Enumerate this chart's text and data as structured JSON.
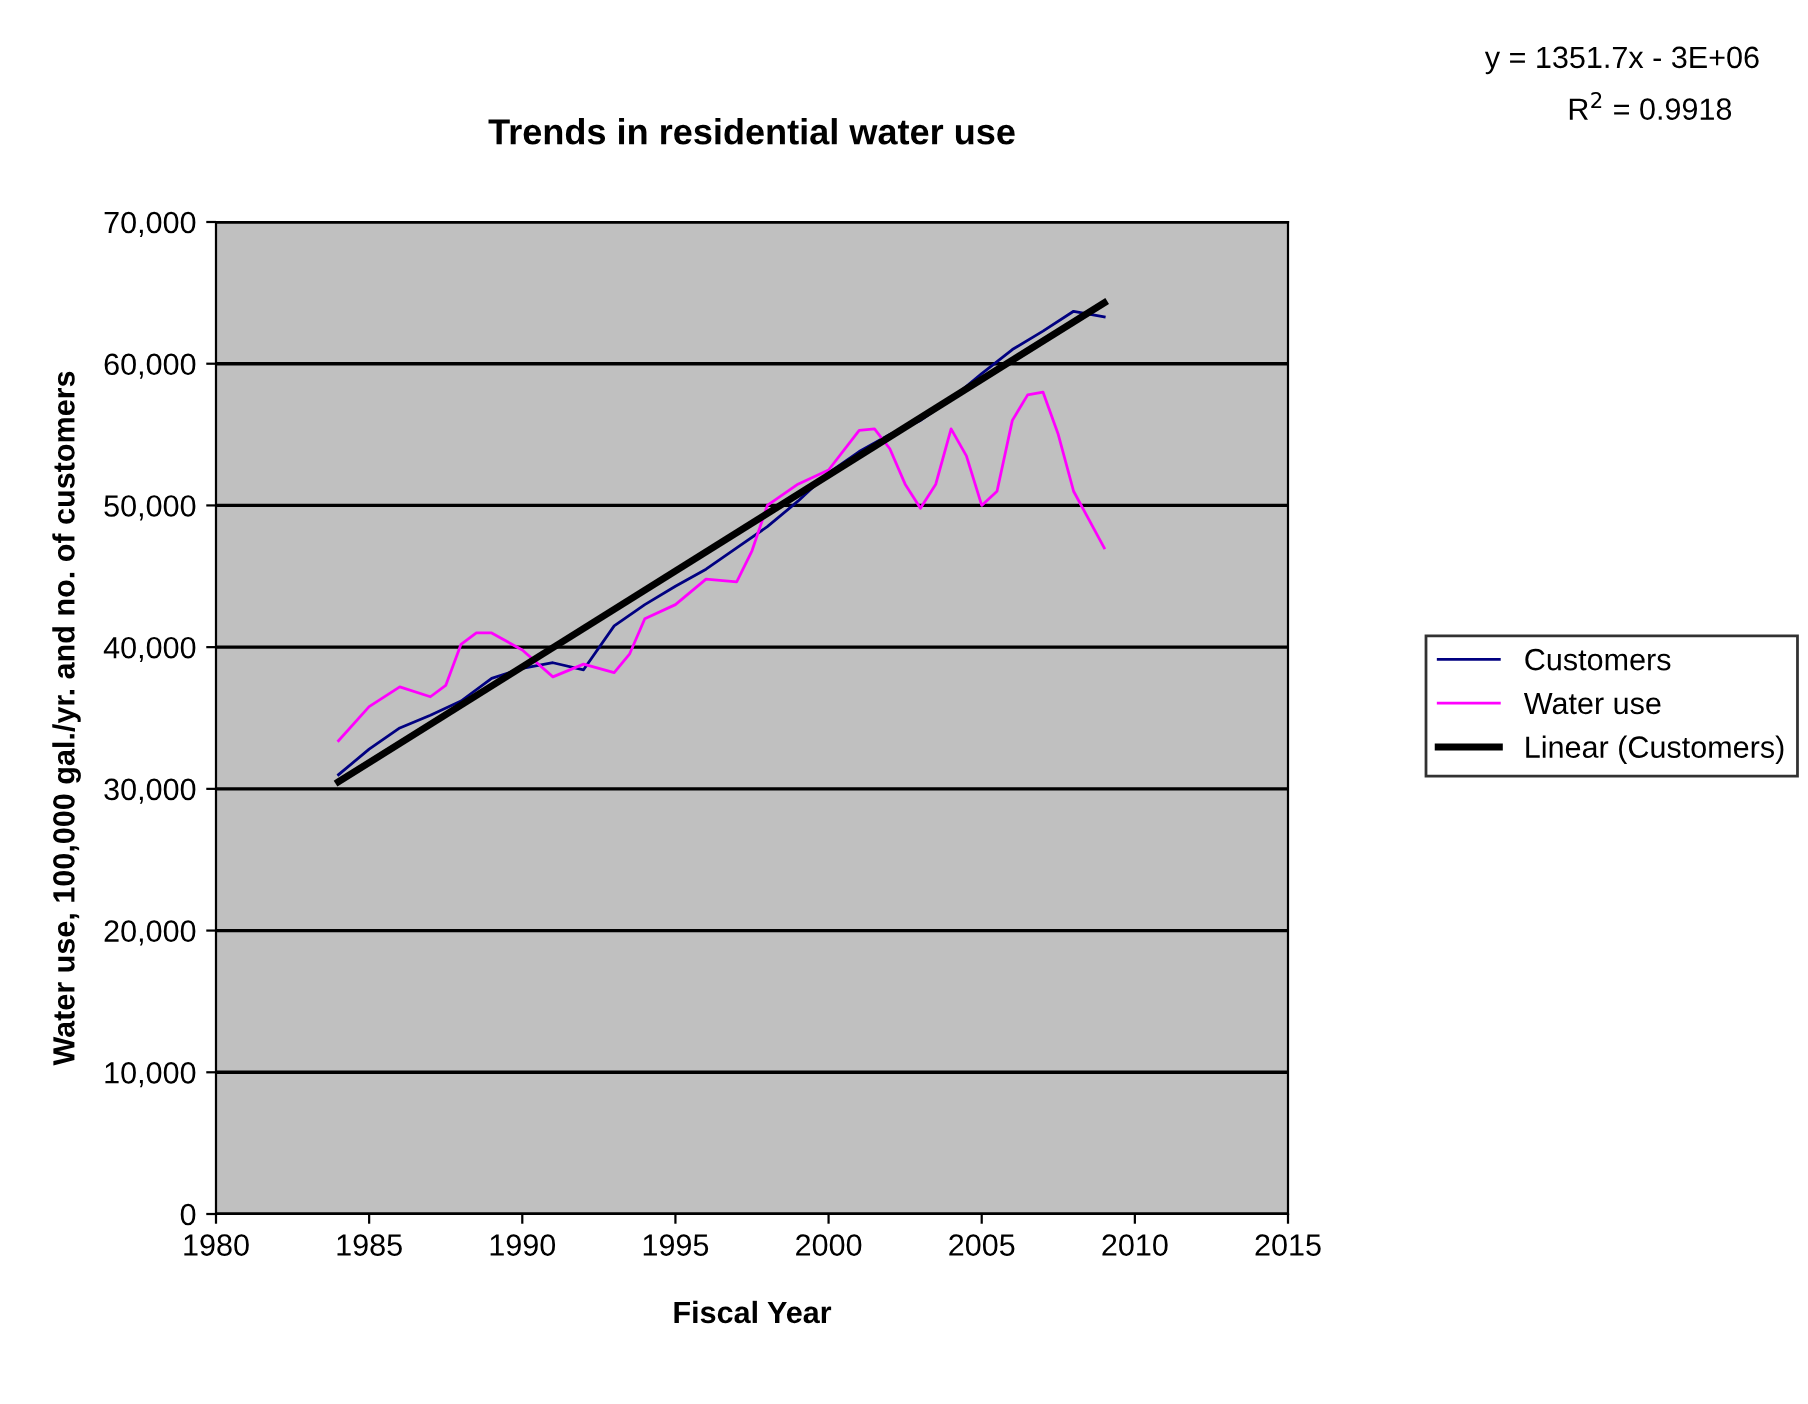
{
  "chart_data": {
    "type": "line",
    "title": "Trends in residential water use",
    "xlabel": "Fiscal Year",
    "ylabel": "Water use, 100,000 gal./yr. and no. of customers",
    "series": [
      {
        "name": "Customers",
        "color": "#000080",
        "x": [
          1984,
          1985,
          1986,
          1987,
          1988,
          1989,
          1990,
          1991,
          1992,
          1993,
          1994,
          1995,
          1996,
          1997,
          1998,
          1999,
          2000,
          2001,
          2002,
          2003,
          2004,
          2005,
          2006,
          2007,
          2008,
          2009
        ],
        "values": [
          31000,
          32800,
          34300,
          35200,
          36200,
          37800,
          38500,
          38900,
          38400,
          41500,
          43000,
          44300,
          45500,
          47000,
          48500,
          50300,
          52300,
          53800,
          55000,
          56000,
          57500,
          59300,
          61000,
          62300,
          63700,
          63300
        ]
      },
      {
        "name": "Water use",
        "color": "#ff00ff",
        "x": [
          1984,
          1985,
          1986,
          1987,
          1987.5,
          1988,
          1988.5,
          1989,
          1990,
          1991,
          1992,
          1993,
          1993.5,
          1994,
          1995,
          1996,
          1997,
          1997.5,
          1998,
          1999,
          2000,
          2001,
          2001.5,
          2002,
          2002.5,
          2003,
          2003.5,
          2004,
          2004.5,
          2005,
          2005.5,
          2006,
          2006.5,
          2007,
          2007.5,
          2008,
          2009
        ],
        "values": [
          33400,
          35800,
          37200,
          36500,
          37300,
          40200,
          41000,
          41000,
          39800,
          37900,
          38800,
          38200,
          39500,
          42000,
          43000,
          44800,
          44600,
          46800,
          50000,
          51500,
          52500,
          55300,
          55400,
          54000,
          51500,
          49800,
          51500,
          55400,
          53500,
          50000,
          51000,
          56000,
          57800,
          58000,
          55000,
          51000,
          47000
        ]
      },
      {
        "name": "Linear (Customers)",
        "color": "#000000",
        "x": [
          1984,
          2009
        ],
        "values": [
          30500,
          64300
        ]
      }
    ],
    "xlim": [
      1980,
      2015
    ],
    "xticks": [
      1980,
      1985,
      1990,
      1995,
      2000,
      2005,
      2010,
      2015
    ],
    "ylim": [
      0,
      70000
    ],
    "yticks": [
      {
        "value": 0,
        "label": "0"
      },
      {
        "value": 10000,
        "label": "10,000"
      },
      {
        "value": 20000,
        "label": "20,000"
      },
      {
        "value": 30000,
        "label": "30,000"
      },
      {
        "value": 40000,
        "label": "40,000"
      },
      {
        "value": 50000,
        "label": "50,000"
      },
      {
        "value": 60000,
        "label": "60,000"
      },
      {
        "value": 70000,
        "label": "70,000"
      }
    ],
    "grid": "y",
    "legend": "right",
    "marker": "none",
    "line_style": "solid",
    "annotations": [
      "y = 1351.7x - 3E+06",
      "R$^{2}$ = 0.9918"
    ]
  }
}
